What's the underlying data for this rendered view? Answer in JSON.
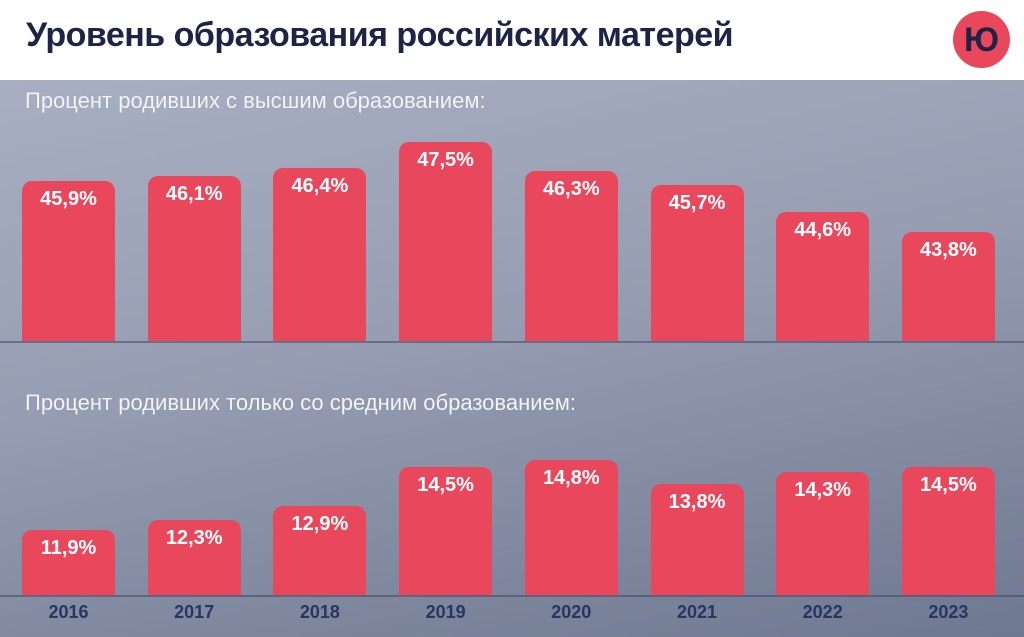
{
  "header": {
    "title": "Уровень образования российских матерей",
    "logo_text": "Ю"
  },
  "colors": {
    "bar": "#e8475c",
    "title": "#1d2445",
    "axis_labels": "#2a3560",
    "section_label": "#f4f5f8",
    "background_top": "#a9afc2",
    "background_bottom": "#6e7890"
  },
  "chart_data": [
    {
      "type": "bar",
      "title": "Процент родивших с высшим образованием:",
      "categories": [
        "2016",
        "2017",
        "2018",
        "2019",
        "2020",
        "2021",
        "2022",
        "2023"
      ],
      "values": [
        45.9,
        46.1,
        46.4,
        47.5,
        46.3,
        45.7,
        44.6,
        43.8
      ],
      "labels": [
        "45,9%",
        "46,1%",
        "46,4%",
        "47,5%",
        "46,3%",
        "45,7%",
        "44,6%",
        "43,8%"
      ],
      "xlabel": "",
      "ylabel": "%",
      "ylim": [
        40,
        48
      ],
      "grid": false,
      "legend": false,
      "value_labels_position": "inside-top",
      "bar_color": "#e8475c"
    },
    {
      "type": "bar",
      "title": "Процент родивших только со средним образованием:",
      "categories": [
        "2016",
        "2017",
        "2018",
        "2019",
        "2020",
        "2021",
        "2022",
        "2023"
      ],
      "values": [
        11.9,
        12.3,
        12.9,
        14.5,
        14.8,
        13.8,
        14.3,
        14.5
      ],
      "labels": [
        "11,9%",
        "12,3%",
        "12,9%",
        "14,5%",
        "14,8%",
        "13,8%",
        "14,3%",
        "14,5%"
      ],
      "xlabel": "",
      "ylabel": "%",
      "ylim": [
        9,
        15
      ],
      "grid": false,
      "legend": false,
      "value_labels_position": "inside-top",
      "bar_color": "#e8475c"
    }
  ]
}
